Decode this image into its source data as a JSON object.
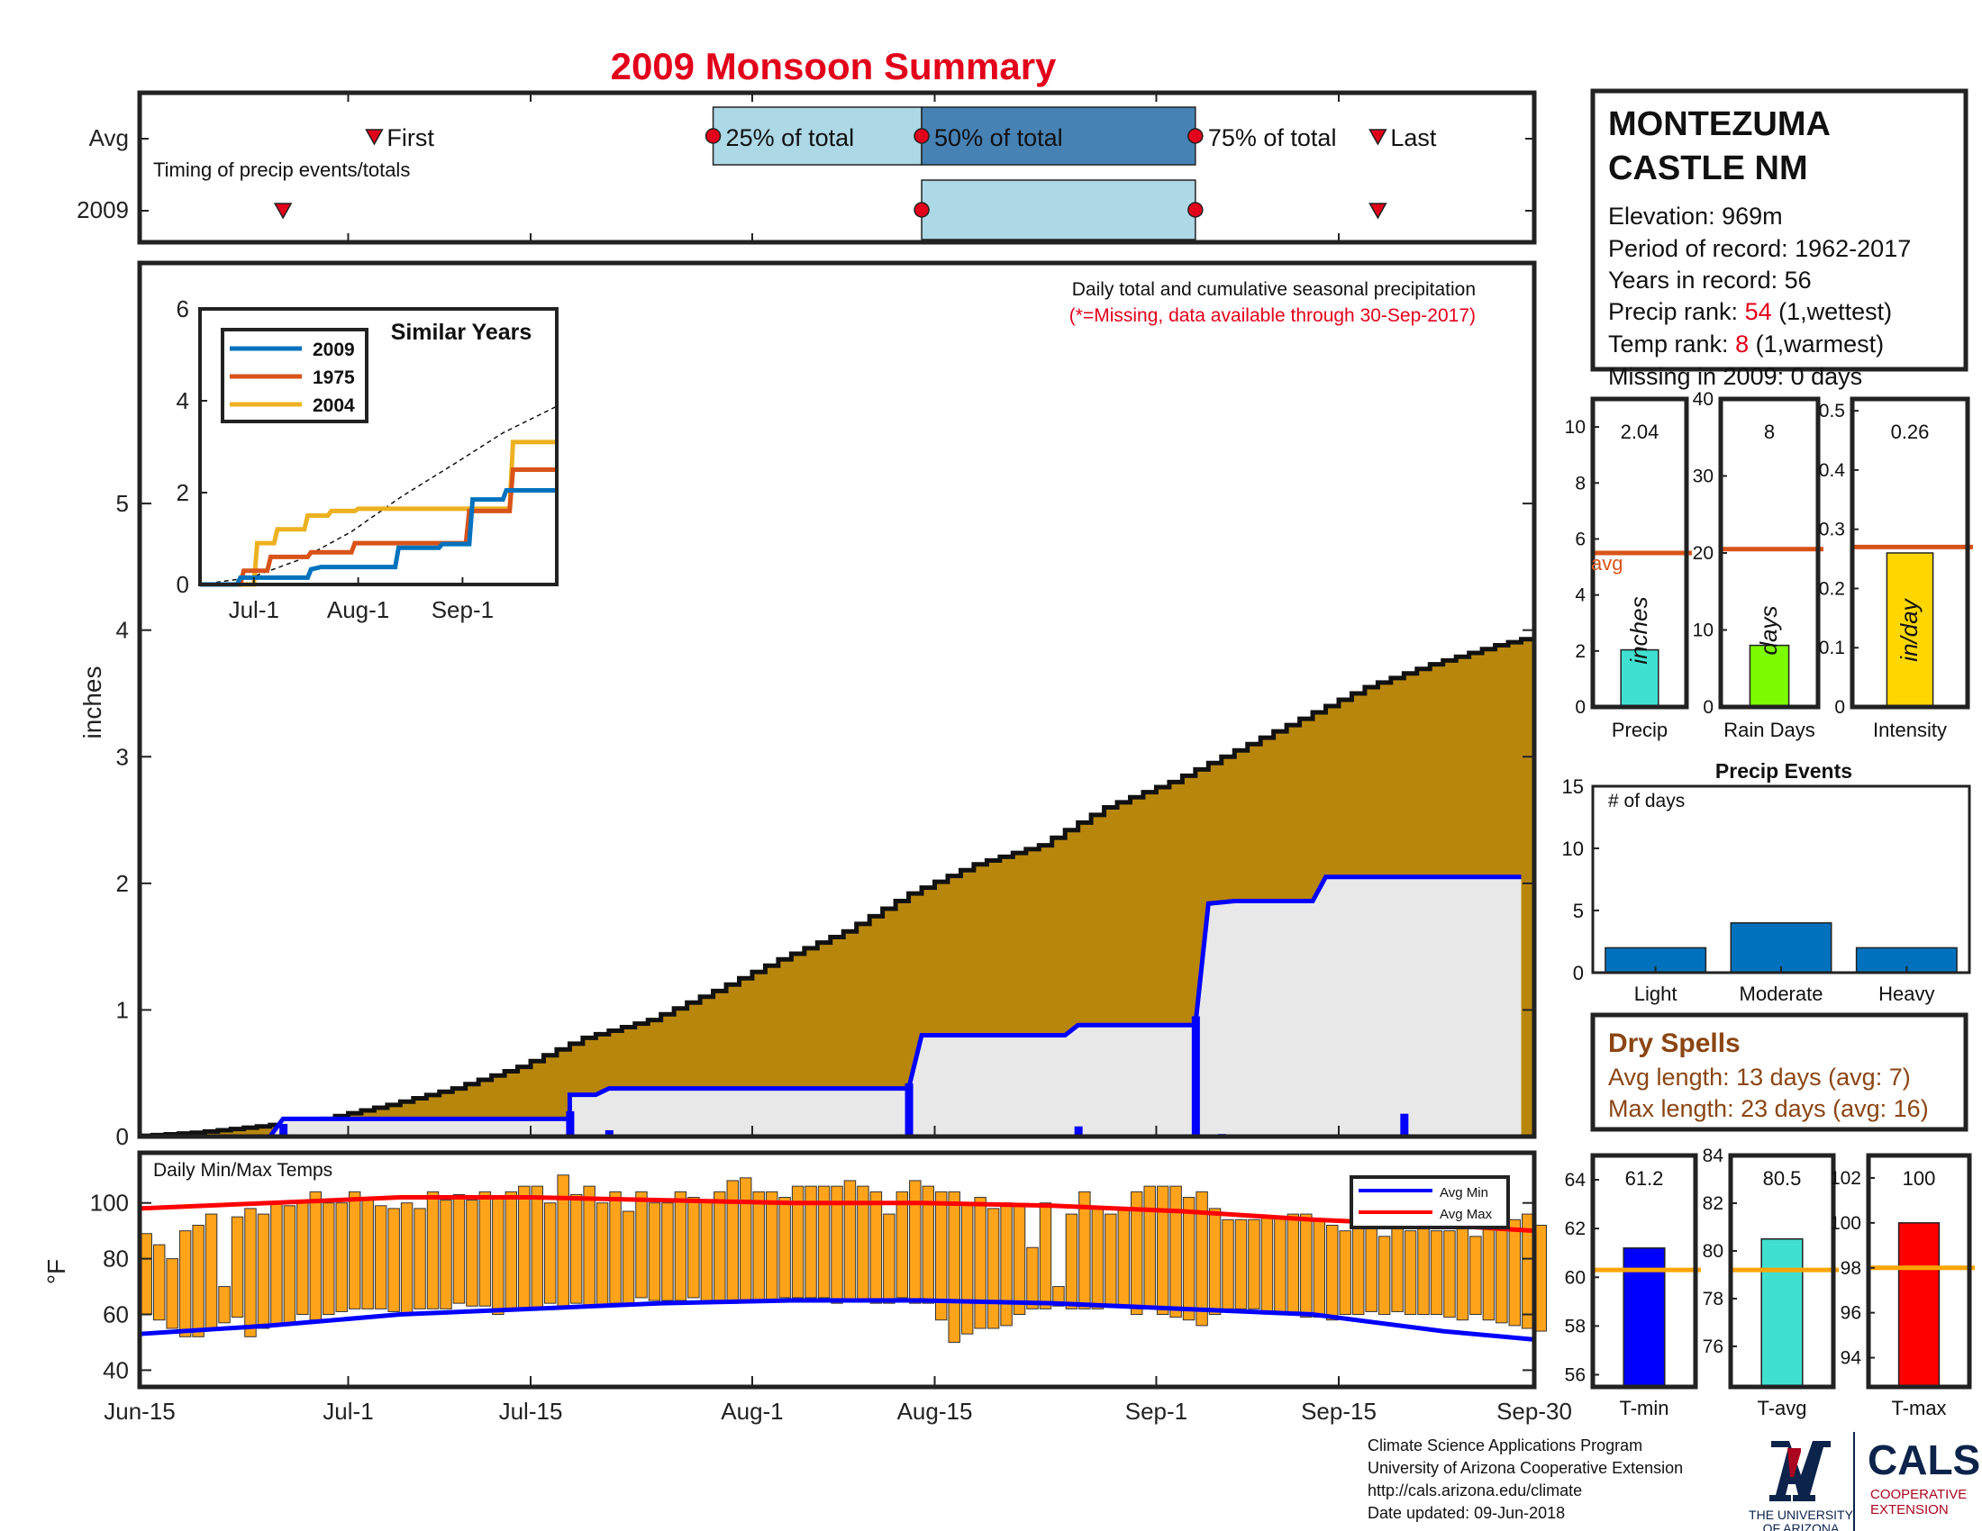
{
  "title": "2009 Monsoon Summary",
  "colors": {
    "title": "#e3001b",
    "cumulative_fill": "#b8860b",
    "daily_bar": "#0000ff",
    "avg_fill": "#e8e8e8",
    "temp_bar": "#ffa31a",
    "avg_min": "#0000ff",
    "avg_max": "#ff0000",
    "avg_line_bar": "#d95319",
    "tavg_line": "#ffa500"
  },
  "station": {
    "name_line1": "MONTEZUMA",
    "name_line2": "CASTLE NM",
    "elevation": "Elevation: 969m",
    "period": "Period of record: 1962-2017",
    "years": "Years in record: 56",
    "precip_rank_label": "Precip rank: ",
    "precip_rank_value": "54",
    "precip_rank_note": " (1,wettest)",
    "temp_rank_label": "Temp rank: ",
    "temp_rank_value": "8",
    "temp_rank_note": " (1,warmest)",
    "missing": "Missing in 2009: 0 days"
  },
  "timing": {
    "row_labels": [
      "Avg",
      "2009"
    ],
    "caption": "Timing of precip events/totals",
    "marker_first": "First",
    "label_25": "25% of total",
    "label_50": "50% of total",
    "label_75": "75% of total",
    "marker_last": "Last",
    "avg": {
      "first": "2009-07-03",
      "p25": "2009-07-29",
      "p50": "2009-08-14",
      "p75": "2009-09-04",
      "last": "2009-09-18"
    },
    "y2009": {
      "first": "2009-06-26",
      "p50": "2009-08-14",
      "p75": "2009-09-04",
      "last": "2009-09-18"
    }
  },
  "main_chart": {
    "subtitle": "Daily total and cumulative seasonal precipitation",
    "missing_note": "(*=Missing, data available through 30-Sep-2017)",
    "ylabel": "inches",
    "yticks": [
      "0",
      "1",
      "2",
      "3",
      "4",
      "5"
    ],
    "xticks": [
      "Jun-15",
      "Jul-1",
      "Jul-15",
      "Aug-1",
      "Aug-15",
      "Sep-1",
      "Sep-15",
      "Sep-30"
    ]
  },
  "inset": {
    "title": "Similar Years",
    "yticks": [
      "0",
      "2",
      "4",
      "6"
    ],
    "xticks": [
      "Jul-1",
      "Aug-1",
      "Sep-1"
    ],
    "legend": [
      "2009",
      "1975",
      "2004"
    ]
  },
  "summary_bars": {
    "precip": {
      "value": "2.04",
      "unit": "inches",
      "label": "Precip",
      "avg_label": "avg",
      "yticks": [
        "0",
        "2",
        "4",
        "6",
        "8",
        "10"
      ]
    },
    "raindays": {
      "value": "8",
      "unit": "days",
      "label": "Rain Days",
      "yticks": [
        "0",
        "10",
        "20",
        "30",
        "40"
      ]
    },
    "intensity": {
      "value": "0.26",
      "unit": "in/day",
      "label": "Intensity",
      "yticks": [
        "0",
        "0.1",
        "0.2",
        "0.3",
        "0.4",
        "0.5"
      ]
    }
  },
  "events": {
    "title": "Precip Events",
    "caption": "# of days",
    "yticks": [
      "0",
      "5",
      "10",
      "15"
    ],
    "categories": [
      "Light",
      "Moderate",
      "Heavy"
    ]
  },
  "dry_spells": {
    "title": "Dry Spells",
    "avg_length": "Avg length: 13 days (avg: 7)",
    "max_length": "Max length: 23 days (avg: 16)"
  },
  "temps": {
    "caption": "Daily Min/Max Temps",
    "ylabel": "°F",
    "yticks": [
      "40",
      "60",
      "80",
      "100"
    ],
    "legend_min": "Avg Min",
    "legend_max": "Avg Max"
  },
  "temp_summary": {
    "tmin": {
      "value": "61.2",
      "label": "T-min",
      "yticks": [
        "56",
        "58",
        "60",
        "62",
        "64"
      ]
    },
    "tavg": {
      "value": "80.5",
      "label": "T-avg",
      "yticks": [
        "76",
        "78",
        "80",
        "82",
        "84"
      ]
    },
    "tmax": {
      "value": "100",
      "label": "T-max",
      "yticks": [
        "94",
        "96",
        "98",
        "100",
        "102"
      ]
    }
  },
  "footer": {
    "line1": "Climate Science Applications Program",
    "line2": "University of Arizona Cooperative Extension",
    "line3": "http://cals.arizona.edu/climate",
    "line4": " Date updated: 09-Jun-2018",
    "ua_line1": "THE UNIVERSITY",
    "ua_line2": "OF ARIZONA",
    "cals": "CALS",
    "cals_sub1": "COOPERATIVE",
    "cals_sub2": "EXTENSION"
  },
  "chart_data": [
    {
      "type": "area",
      "name": "cumulative_avg_precip",
      "x_start": "2009-06-15",
      "x_end": "2009-09-30",
      "ylim": [
        0,
        6.9
      ],
      "cumulative_avg": [
        [
          0,
          0
        ],
        [
          5,
          0.03
        ],
        [
          10,
          0.08
        ],
        [
          15,
          0.14
        ],
        [
          20,
          0.25
        ],
        [
          25,
          0.38
        ],
        [
          30,
          0.55
        ],
        [
          35,
          0.78
        ],
        [
          40,
          0.92
        ],
        [
          45,
          1.15
        ],
        [
          50,
          1.4
        ],
        [
          55,
          1.62
        ],
        [
          60,
          1.92
        ],
        [
          65,
          2.15
        ],
        [
          70,
          2.3
        ],
        [
          75,
          2.6
        ],
        [
          80,
          2.8
        ],
        [
          85,
          3.05
        ],
        [
          90,
          3.3
        ],
        [
          95,
          3.55
        ],
        [
          100,
          3.73
        ],
        [
          105,
          3.88
        ],
        [
          110,
          4.0
        ],
        [
          115,
          4.3
        ],
        [
          120,
          4.55
        ],
        [
          125,
          4.78
        ],
        [
          130,
          4.9
        ],
        [
          135,
          5.05
        ],
        [
          140,
          5.3
        ],
        [
          145,
          5.5
        ],
        [
          147,
          5.52
        ]
      ],
      "cumulative_2009": [
        [
          0,
          0
        ],
        [
          10,
          0
        ],
        [
          11,
          0.14
        ],
        [
          33,
          0.14
        ],
        [
          33,
          0.33
        ],
        [
          35,
          0.33
        ],
        [
          36,
          0.38
        ],
        [
          59,
          0.38
        ],
        [
          60,
          0.8
        ],
        [
          71,
          0.8
        ],
        [
          72,
          0.88
        ],
        [
          81,
          0.88
        ],
        [
          82,
          1.84
        ],
        [
          84,
          1.86
        ],
        [
          90,
          1.86
        ],
        [
          91,
          2.05
        ],
        [
          106,
          2.05
        ]
      ],
      "daily_2009": [
        [
          11,
          0.1
        ],
        [
          33,
          0.2
        ],
        [
          36,
          0.05
        ],
        [
          59,
          0.42
        ],
        [
          72,
          0.08
        ],
        [
          81,
          0.95
        ],
        [
          83,
          0.02
        ],
        [
          97,
          0.18
        ]
      ]
    },
    {
      "type": "line",
      "name": "similar_years",
      "xticks": [
        "Jul-1",
        "Aug-1",
        "Sep-1"
      ],
      "ylim": [
        0,
        6
      ],
      "series": [
        {
          "name": "2009",
          "points": [
            [
              0,
              0
            ],
            [
              11,
              0
            ],
            [
              12,
              0.15
            ],
            [
              32,
              0.15
            ],
            [
              33,
              0.33
            ],
            [
              36,
              0.38
            ],
            [
              58,
              0.38
            ],
            [
              59,
              0.8
            ],
            [
              71,
              0.8
            ],
            [
              72,
              0.88
            ],
            [
              80,
              0.88
            ],
            [
              81,
              1.85
            ],
            [
              90,
              1.85
            ],
            [
              91,
              2.05
            ],
            [
              106,
              2.05
            ]
          ]
        },
        {
          "name": "1975",
          "points": [
            [
              0,
              0
            ],
            [
              12,
              0
            ],
            [
              13,
              0.3
            ],
            [
              20,
              0.3
            ],
            [
              21,
              0.6
            ],
            [
              32,
              0.6
            ],
            [
              33,
              0.7
            ],
            [
              45,
              0.7
            ],
            [
              46,
              0.9
            ],
            [
              79,
              0.9
            ],
            [
              80,
              1.6
            ],
            [
              92,
              1.6
            ],
            [
              93,
              2.5
            ],
            [
              106,
              2.5
            ]
          ]
        },
        {
          "name": "2004",
          "points": [
            [
              0,
              0
            ],
            [
              16,
              0
            ],
            [
              17,
              0.9
            ],
            [
              22,
              0.9
            ],
            [
              23,
              1.2
            ],
            [
              31,
              1.2
            ],
            [
              32,
              1.5
            ],
            [
              38,
              1.5
            ],
            [
              39,
              1.6
            ],
            [
              46,
              1.6
            ],
            [
              47,
              1.65
            ],
            [
              92,
              1.65
            ],
            [
              93,
              3.1
            ],
            [
              106,
              3.1
            ]
          ]
        }
      ],
      "avg_series": [
        [
          0,
          0
        ],
        [
          15,
          0.15
        ],
        [
          30,
          0.55
        ],
        [
          45,
          1.15
        ],
        [
          60,
          1.92
        ],
        [
          75,
          2.6
        ],
        [
          90,
          3.3
        ],
        [
          106,
          3.88
        ]
      ]
    },
    {
      "type": "bar",
      "name": "precip_summary",
      "values": {
        "precip": 2.04,
        "raindays": 8,
        "intensity": 0.26
      },
      "avgs": {
        "precip": 5.5,
        "raindays": 20.5,
        "intensity": 0.27
      },
      "ylims": {
        "precip": [
          0,
          11
        ],
        "raindays": [
          0,
          40
        ],
        "intensity": [
          0,
          0.52
        ]
      }
    },
    {
      "type": "bar",
      "name": "precip_events",
      "categories": [
        "Light",
        "Moderate",
        "Heavy"
      ],
      "values": [
        2,
        4,
        2
      ],
      "ylim": [
        0,
        15
      ]
    },
    {
      "type": "bar",
      "name": "daily_temps",
      "ylim": [
        34,
        118
      ],
      "start_day": 0,
      "tmin": [
        60,
        58,
        55,
        52,
        52,
        55,
        57,
        59,
        52,
        55,
        56,
        57,
        60,
        58,
        60,
        61,
        62,
        62,
        62,
        61,
        60,
        62,
        62,
        62,
        64,
        63,
        63,
        60,
        62,
        62,
        62,
        64,
        63,
        64,
        63,
        63,
        64,
        64,
        66,
        65,
        65,
        65,
        66,
        64,
        64,
        64,
        65,
        65,
        65,
        66,
        66,
        66,
        66,
        64,
        65,
        65,
        64,
        64,
        66,
        64,
        64,
        58,
        50,
        53,
        55,
        55,
        56,
        60,
        62,
        62,
        63,
        62,
        62,
        62,
        63,
        63,
        60,
        62,
        60,
        59,
        58,
        56,
        60,
        62,
        62,
        62,
        61,
        60,
        60,
        59,
        59,
        58,
        60,
        60,
        61,
        60,
        61,
        60,
        60,
        60,
        59,
        58,
        60,
        58,
        57,
        56,
        55,
        54
      ],
      "tmax": [
        89,
        85,
        80,
        90,
        92,
        96,
        70,
        95,
        98,
        96,
        100,
        99,
        101,
        104,
        100,
        100,
        104,
        102,
        99,
        98,
        100,
        98,
        104,
        101,
        103,
        101,
        104,
        102,
        104,
        106,
        106,
        100,
        110,
        103,
        106,
        100,
        104,
        97,
        104,
        100,
        100,
        104,
        102,
        101,
        104,
        108,
        109,
        104,
        104,
        102,
        106,
        106,
        106,
        106,
        108,
        106,
        104,
        96,
        104,
        108,
        106,
        104,
        104,
        100,
        102,
        98,
        100,
        99,
        84,
        100,
        70,
        96,
        104,
        98,
        96,
        98,
        104,
        106,
        106,
        106,
        102,
        104,
        98,
        94,
        94,
        94,
        95,
        95,
        96,
        96,
        94,
        92,
        90,
        94,
        96,
        88,
        96,
        90,
        96,
        90,
        90,
        92,
        88,
        94,
        92,
        94,
        96,
        92
      ]
    },
    {
      "type": "line",
      "name": "avg_temps",
      "avg_min": [
        [
          0,
          53
        ],
        [
          10,
          56
        ],
        [
          20,
          60
        ],
        [
          30,
          62
        ],
        [
          40,
          64
        ],
        [
          50,
          65
        ],
        [
          60,
          65
        ],
        [
          70,
          64
        ],
        [
          80,
          62
        ],
        [
          90,
          60
        ],
        [
          100,
          54
        ],
        [
          107,
          51
        ]
      ],
      "avg_max": [
        [
          0,
          98
        ],
        [
          10,
          100
        ],
        [
          20,
          102
        ],
        [
          30,
          102
        ],
        [
          40,
          101
        ],
        [
          50,
          100
        ],
        [
          60,
          100
        ],
        [
          70,
          99
        ],
        [
          80,
          97
        ],
        [
          90,
          94
        ],
        [
          100,
          92
        ],
        [
          107,
          90
        ]
      ]
    },
    {
      "type": "bar",
      "name": "temp_summary",
      "values": {
        "tmin": 61.2,
        "tavg": 80.5,
        "tmax": 100
      },
      "avgs": {
        "tmin": 60.3,
        "tavg": 79.2,
        "tmax": 98
      },
      "ylims": {
        "tmin": [
          55.5,
          65
        ],
        "tavg": [
          74.3,
          84
        ],
        "tmax": [
          92.7,
          103
        ]
      }
    }
  ]
}
